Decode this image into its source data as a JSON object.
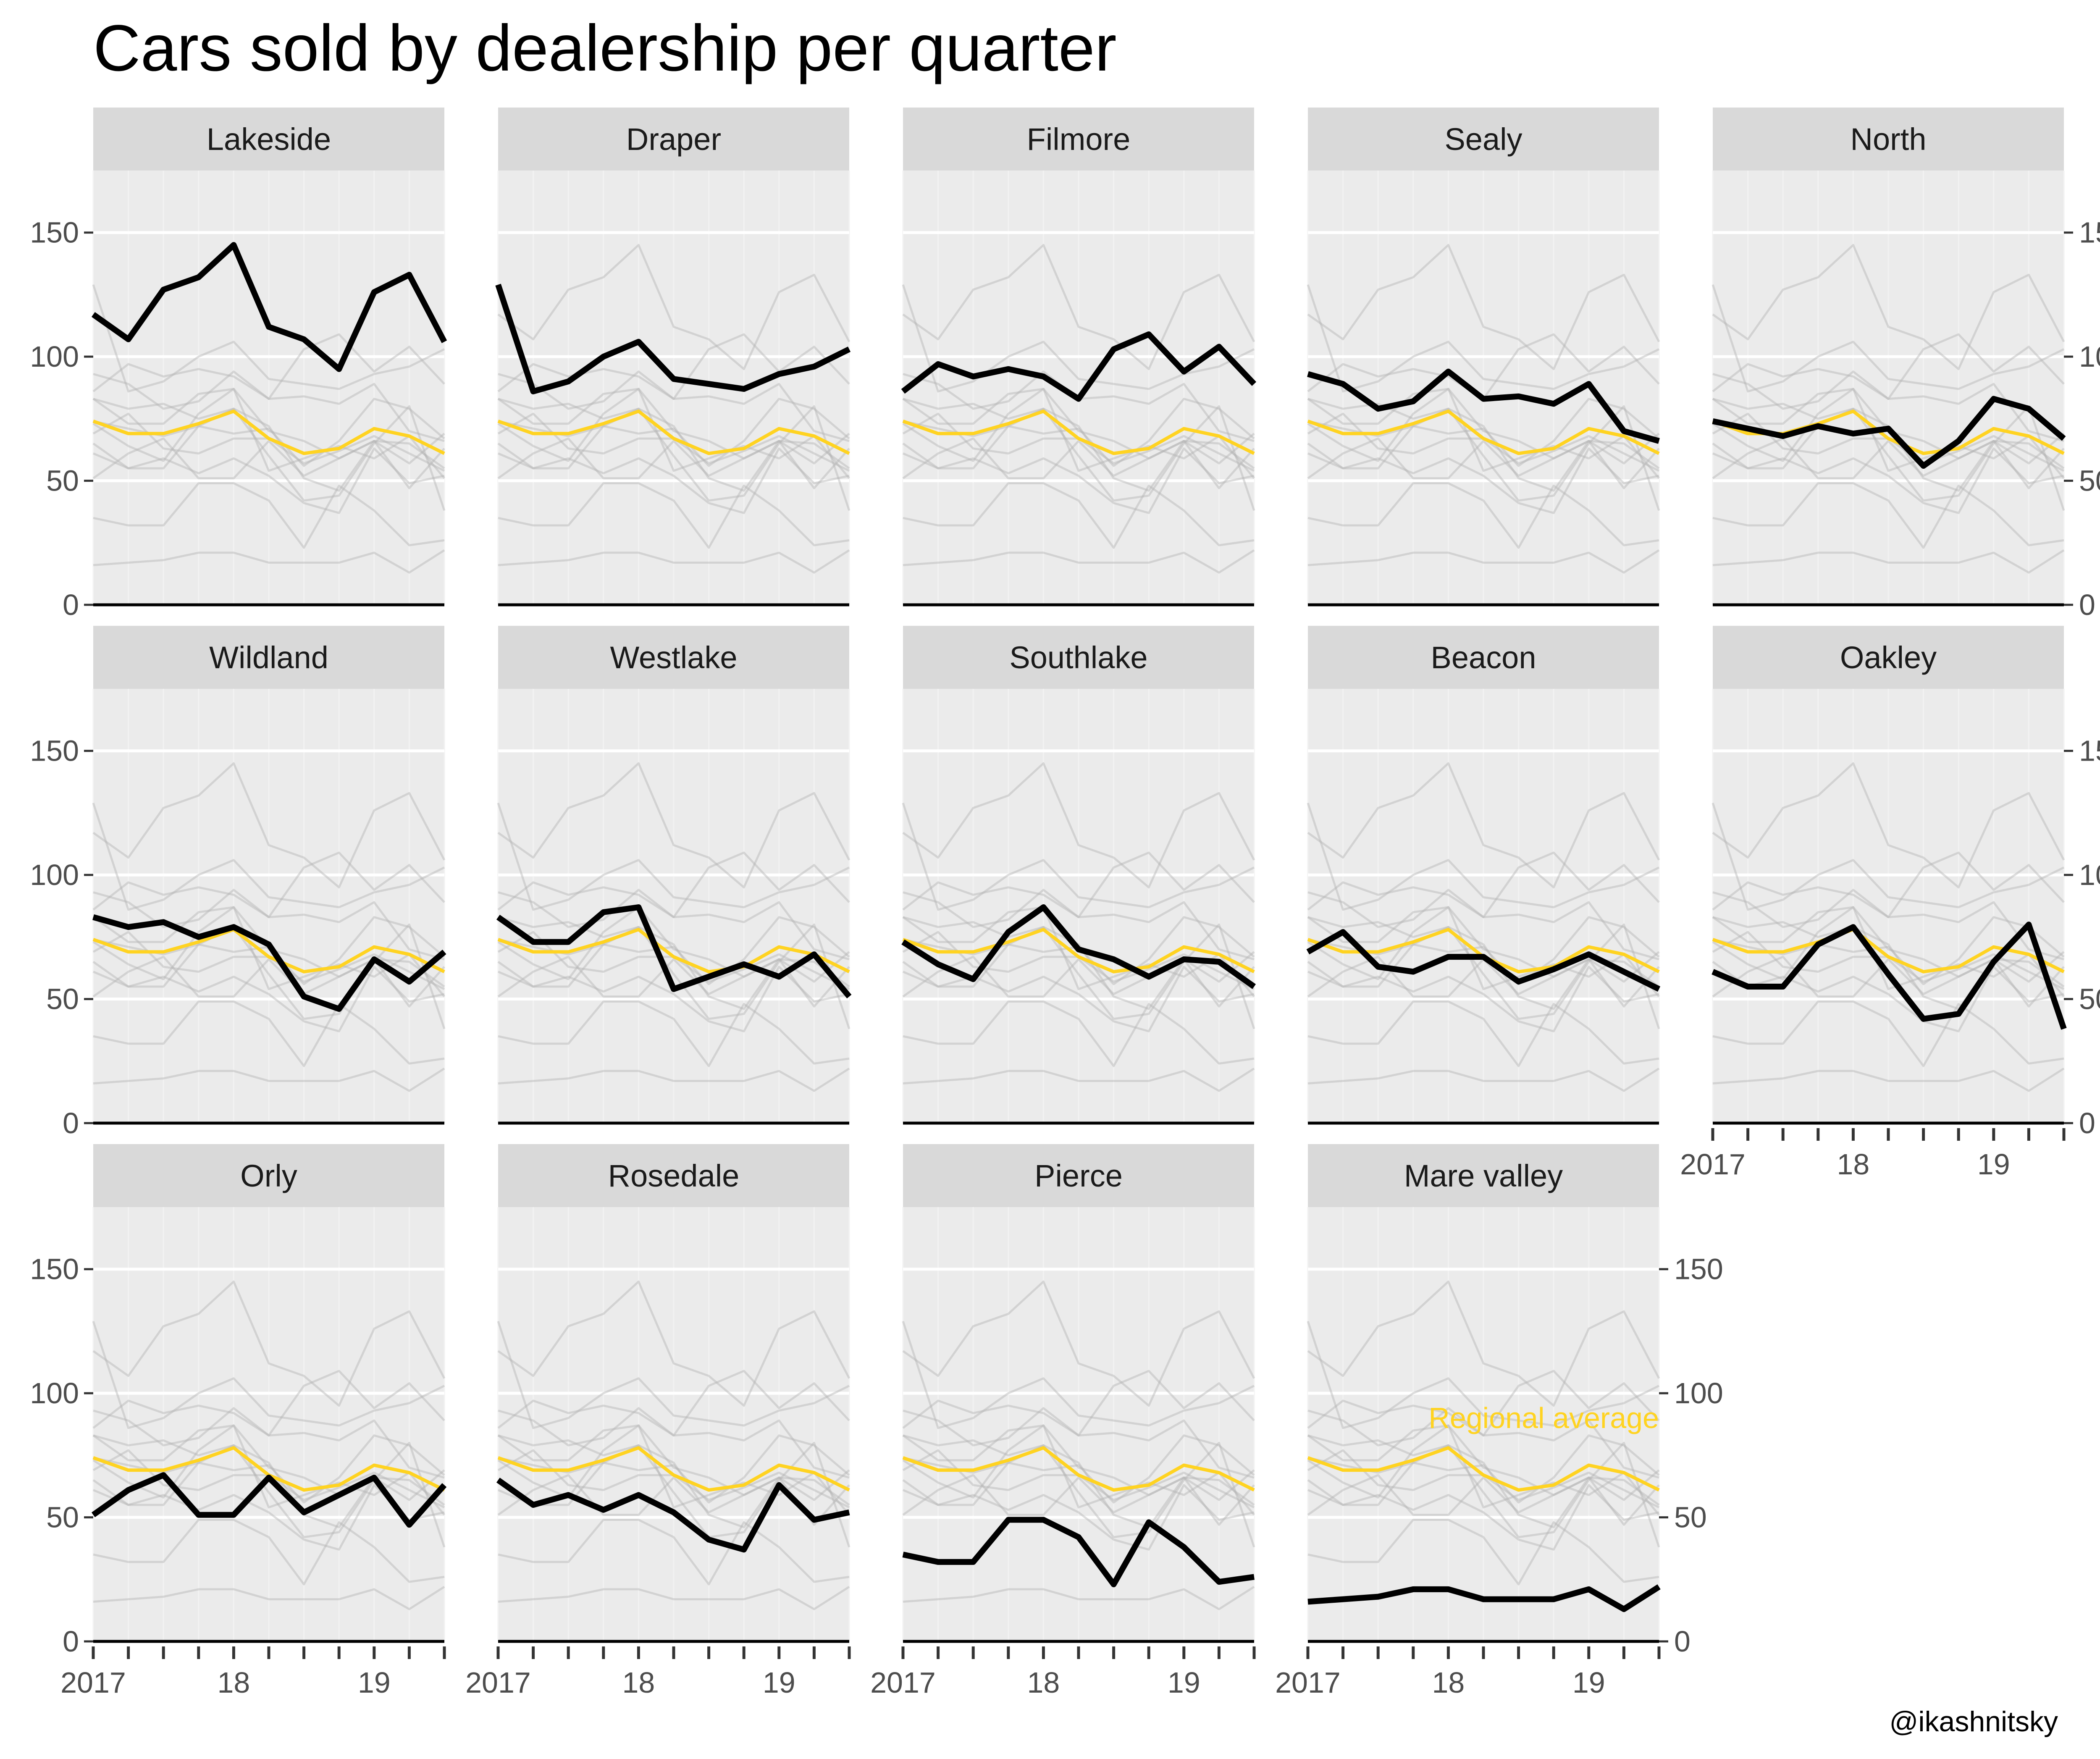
{
  "colors": {
    "panel_bg": "#ebebeb",
    "strip_bg": "#d9d9d9",
    "grid": "#ffffff",
    "highlight_line": "#000000",
    "average_line": "#ffd321",
    "background_lines": "#b4b4b4"
  },
  "chart_data": {
    "type": "line",
    "title": "Cars sold by dealership per quarter",
    "credit": "@ikashnitsky",
    "average_label": "Regional average",
    "x_ticks": [
      "2017",
      "18",
      "19"
    ],
    "y_ticks": [
      "0",
      "50",
      "100",
      "150"
    ],
    "ylim": [
      0,
      175
    ],
    "x": [
      "2017 Q1",
      "2017 Q2",
      "2017 Q3",
      "2017 Q4",
      "2018 Q1",
      "2018 Q2",
      "2018 Q3",
      "2018 Q4",
      "2019 Q1",
      "2019 Q2",
      "2019 Q3"
    ],
    "regional_average": [
      74,
      69,
      69,
      73,
      78,
      67,
      61,
      63,
      71,
      68,
      61
    ],
    "grid": true,
    "series": [
      {
        "name": "Lakeside",
        "values": [
          117,
          107,
          127,
          132,
          145,
          112,
          107,
          95,
          126,
          133,
          106
        ]
      },
      {
        "name": "Draper",
        "values": [
          129,
          86,
          90,
          100,
          106,
          91,
          89,
          87,
          93,
          96,
          103
        ]
      },
      {
        "name": "Filmore",
        "values": [
          86,
          97,
          92,
          95,
          92,
          83,
          103,
          109,
          94,
          104,
          89
        ]
      },
      {
        "name": "Sealy",
        "values": [
          93,
          89,
          79,
          82,
          94,
          83,
          84,
          81,
          89,
          70,
          66
        ]
      },
      {
        "name": "North",
        "values": [
          74,
          71,
          68,
          72,
          69,
          71,
          56,
          66,
          83,
          79,
          67
        ]
      },
      {
        "name": "Wildland",
        "values": [
          83,
          79,
          81,
          75,
          79,
          72,
          51,
          46,
          66,
          57,
          69
        ]
      },
      {
        "name": "Westlake",
        "values": [
          83,
          73,
          73,
          85,
          87,
          54,
          59,
          64,
          59,
          68,
          51
        ]
      },
      {
        "name": "Southlake",
        "values": [
          73,
          64,
          58,
          77,
          87,
          70,
          66,
          59,
          66,
          65,
          55
        ]
      },
      {
        "name": "Beacon",
        "values": [
          69,
          77,
          63,
          61,
          67,
          67,
          57,
          62,
          68,
          61,
          54
        ]
      },
      {
        "name": "Oakley",
        "values": [
          61,
          55,
          55,
          72,
          79,
          60,
          42,
          44,
          65,
          80,
          38
        ]
      },
      {
        "name": "Orly",
        "values": [
          51,
          61,
          67,
          51,
          51,
          66,
          52,
          59,
          66,
          47,
          63
        ]
      },
      {
        "name": "Rosedale",
        "values": [
          65,
          55,
          59,
          53,
          59,
          52,
          41,
          37,
          63,
          49,
          52
        ]
      },
      {
        "name": "Pierce",
        "values": [
          35,
          32,
          32,
          49,
          49,
          42,
          23,
          48,
          38,
          24,
          26
        ]
      },
      {
        "name": "Mare valley",
        "values": [
          16,
          17,
          18,
          21,
          21,
          17,
          17,
          17,
          21,
          13,
          22
        ]
      }
    ]
  }
}
